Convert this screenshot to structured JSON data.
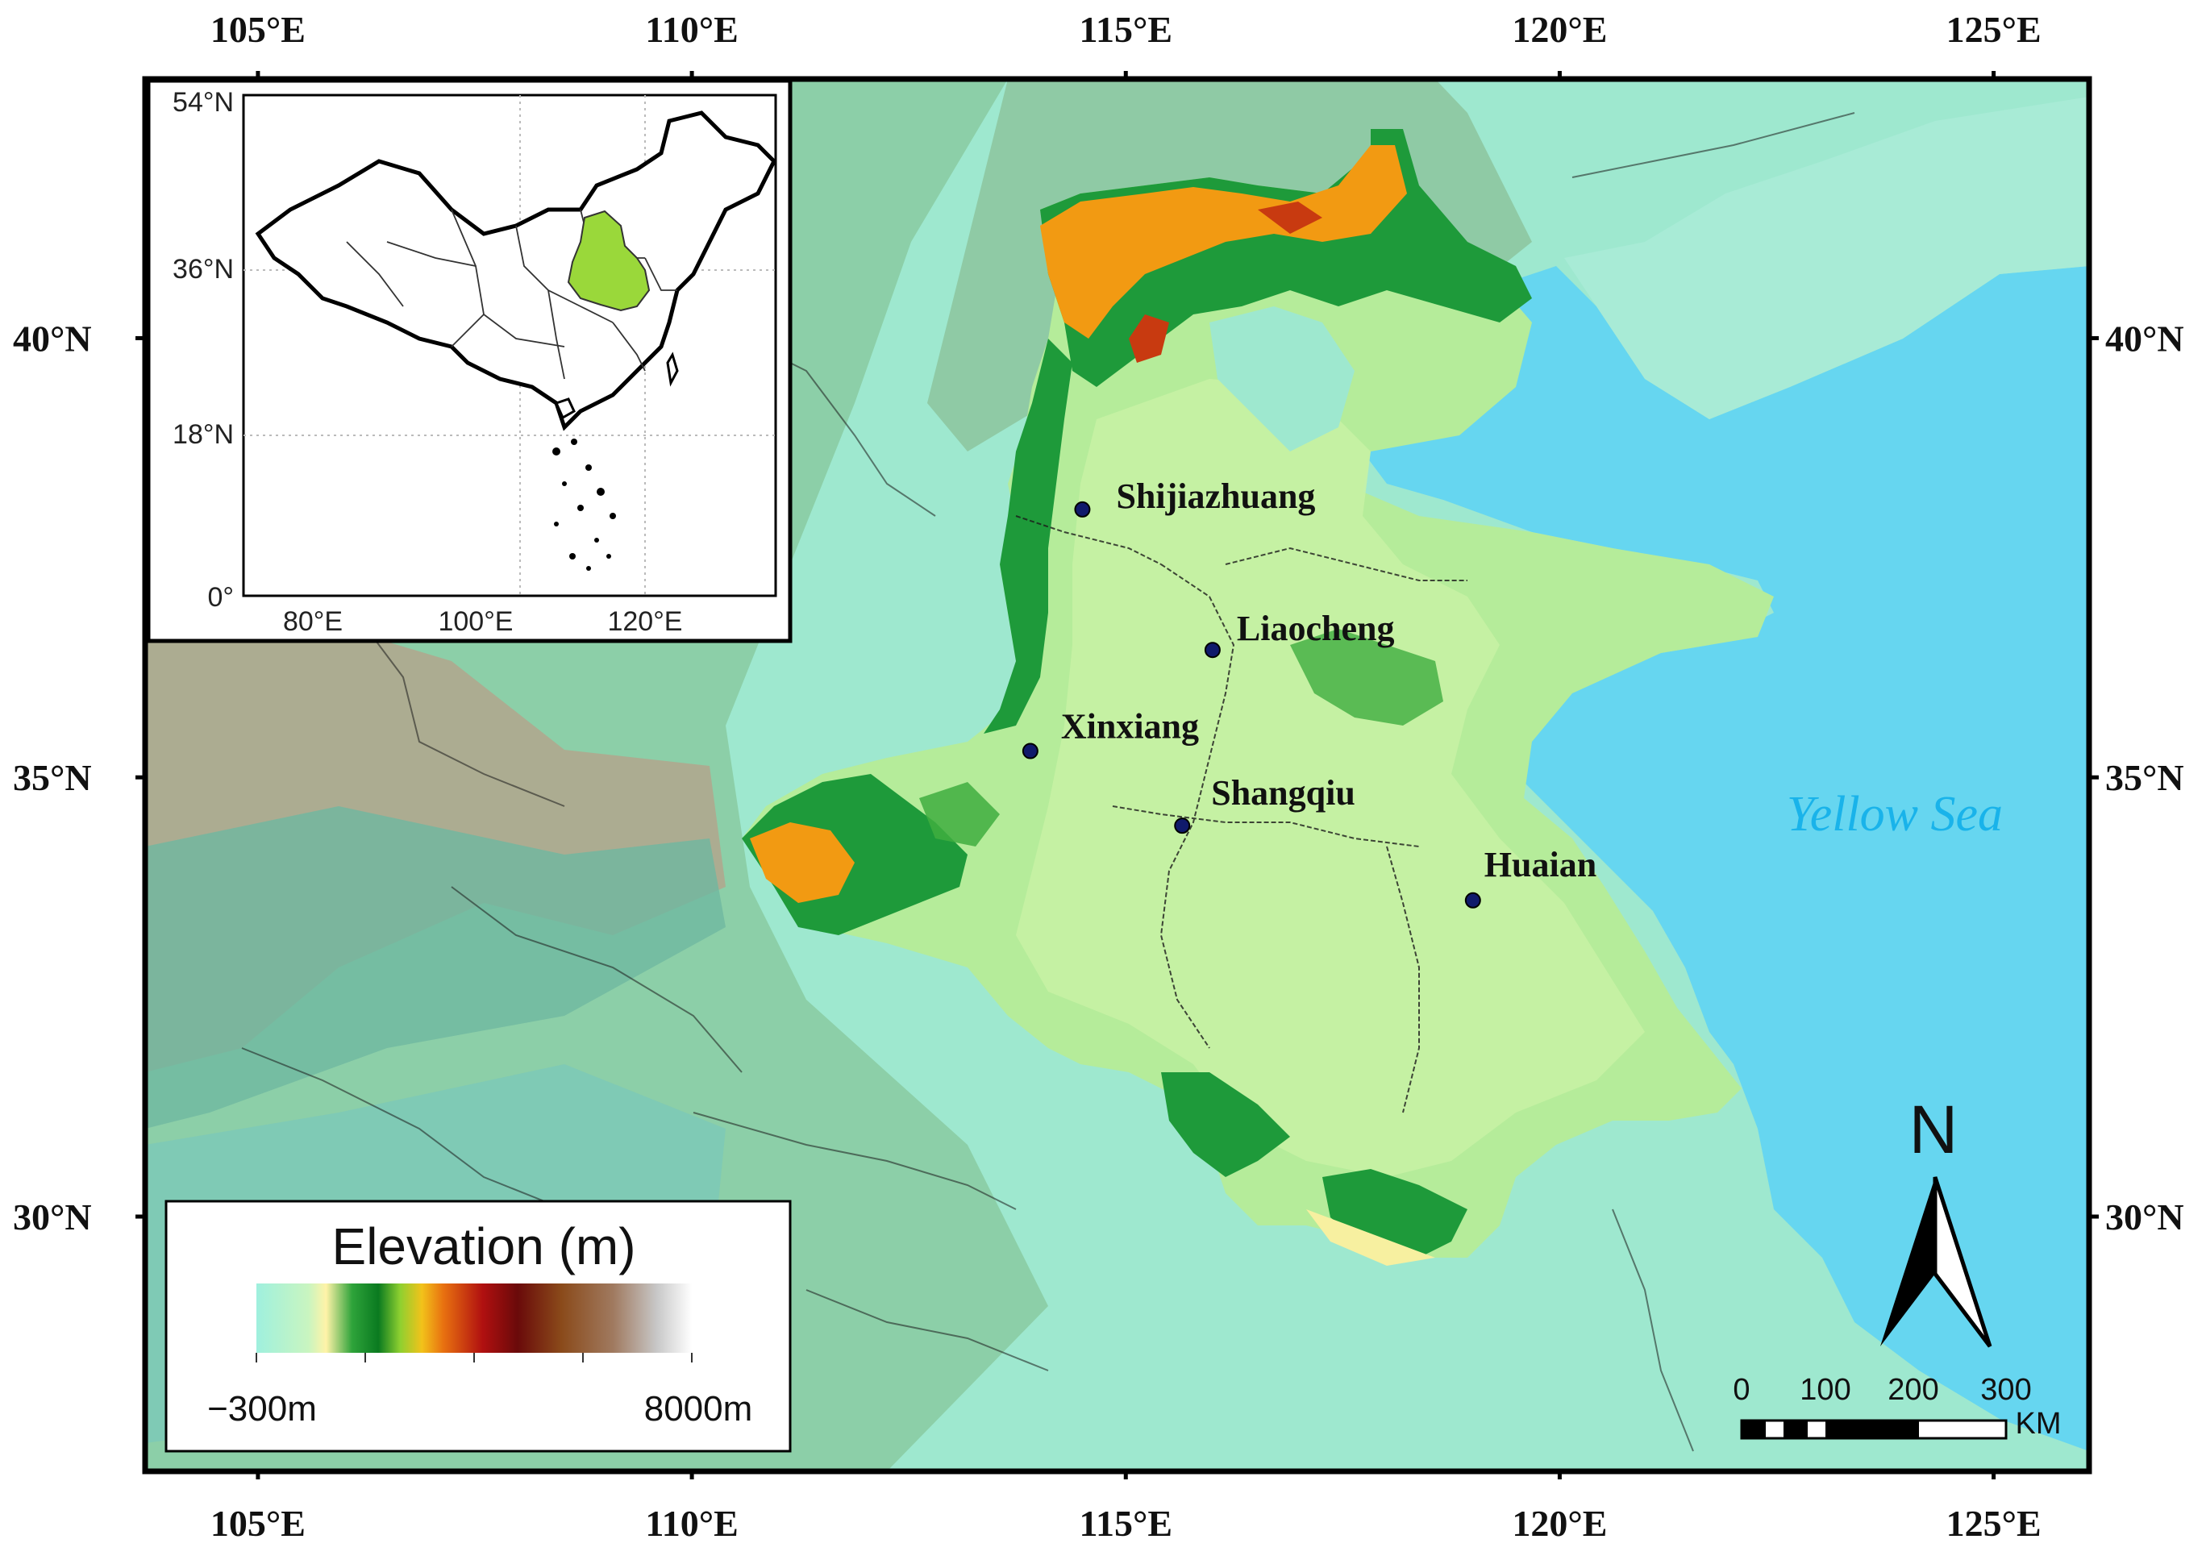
{
  "map": {
    "lon_labels": [
      "105°E",
      "110°E",
      "115°E",
      "120°E",
      "125°E"
    ],
    "lon_values": [
      105,
      110,
      115,
      120,
      125
    ],
    "lat_labels": [
      "40°N",
      "35°N",
      "30°N"
    ],
    "lat_values": [
      40,
      35,
      30
    ],
    "extent": {
      "lon_min": 103.7,
      "lon_max": 126.1,
      "lat_min": 27.1,
      "lat_max": 42.95
    },
    "cities": [
      {
        "name": "Shijiazhuang",
        "lon": 114.5,
        "lat": 38.05
      },
      {
        "name": "Liaocheng",
        "lon": 116.0,
        "lat": 36.45
      },
      {
        "name": "Xinxiang",
        "lon": 113.9,
        "lat": 35.3
      },
      {
        "name": "Shangqiu",
        "lon": 115.65,
        "lat": 34.45
      },
      {
        "name": "Huaian",
        "lon": 119.0,
        "lat": 33.6
      }
    ],
    "sea_label": "Yellow Sea",
    "colors": {
      "sea": "#66d6f0",
      "lowland": "#a6efd0",
      "plain": "#b5ec9a",
      "mountain_green": "#1e9a3a",
      "mountain_orange": "#f29a12",
      "city_dot": "#101a6b"
    }
  },
  "inset": {
    "lat_labels": [
      "54°N",
      "36°N",
      "18°N",
      "0°"
    ],
    "lon_labels": [
      "80°E",
      "100°E",
      "120°E"
    ],
    "highlight_color": "#9ad83a"
  },
  "legend": {
    "title": "Elevation (m)",
    "min_label": "−300m",
    "max_label": "8000m",
    "colors": [
      "#9ff0de",
      "#c9f5c0",
      "#fff3a8",
      "#2ea33a",
      "#0a7a20",
      "#8ed030",
      "#f2c21a",
      "#e87010",
      "#b01010",
      "#6a0a0a",
      "#8a4a1a",
      "#a07a60",
      "#c8c8c8",
      "#ffffff"
    ]
  },
  "scale_bar": {
    "labels": [
      "0",
      "100",
      "200",
      "300"
    ],
    "unit": "KM"
  },
  "north_arrow": {
    "label": "N"
  }
}
